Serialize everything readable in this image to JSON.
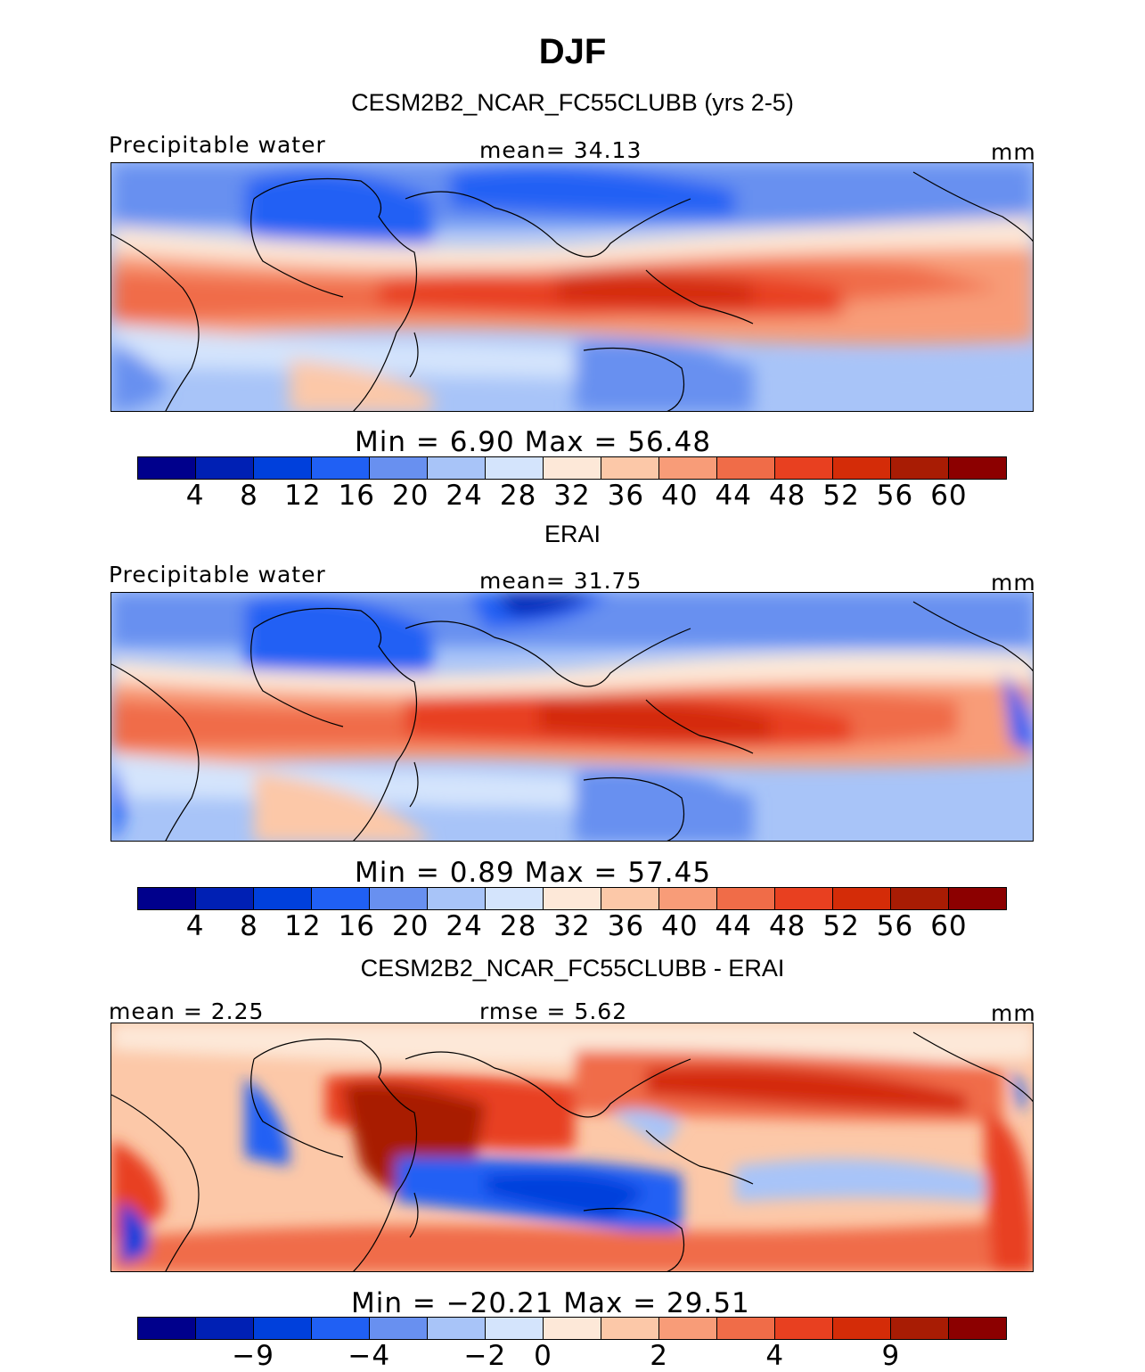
{
  "title": "DJF",
  "panels": [
    {
      "subtitle": "CESM2B2_NCAR_FC55CLUBB (yrs 2-5)",
      "left_label": "Precipitable water",
      "center_label": "mean=  34.13",
      "right_label": "mm",
      "min_max": "Min =    6.90  Max =   56.48",
      "tick_labels": [
        "4",
        "8",
        "12",
        "16",
        "20",
        "24",
        "28",
        "32",
        "36",
        "40",
        "44",
        "48",
        "52",
        "56",
        "60"
      ],
      "min": 6.9,
      "max": 56.48
    },
    {
      "subtitle": "ERAI",
      "left_label": "Precipitable water",
      "center_label": "mean=  31.75",
      "right_label": "mm",
      "min_max": "Min =    0.89  Max =   57.45",
      "tick_labels": [
        "4",
        "8",
        "12",
        "16",
        "20",
        "24",
        "28",
        "32",
        "36",
        "40",
        "44",
        "48",
        "52",
        "56",
        "60"
      ],
      "min": 0.89,
      "max": 57.45
    },
    {
      "subtitle": "CESM2B2_NCAR_FC55CLUBB - ERAI",
      "left_label": "mean =    2.25",
      "center_label": "rmse =    5.62",
      "right_label": "mm",
      "min_max": "Min = −20.21  Max =   29.51",
      "tick_labels": [
        "−9",
        "−4",
        "−2",
        "0",
        "2",
        "4",
        "9"
      ],
      "min": -20.21,
      "max": 29.51
    }
  ],
  "colorbar_colors": [
    "#00008c",
    "#0020b4",
    "#0040dc",
    "#2060f4",
    "#6890f0",
    "#a8c4f8",
    "#d4e4fc",
    "#fde8d8",
    "#fcc8a8",
    "#f89c78",
    "#f06c48",
    "#e84020",
    "#d42c08",
    "#a81c04",
    "#8c0000"
  ]
}
